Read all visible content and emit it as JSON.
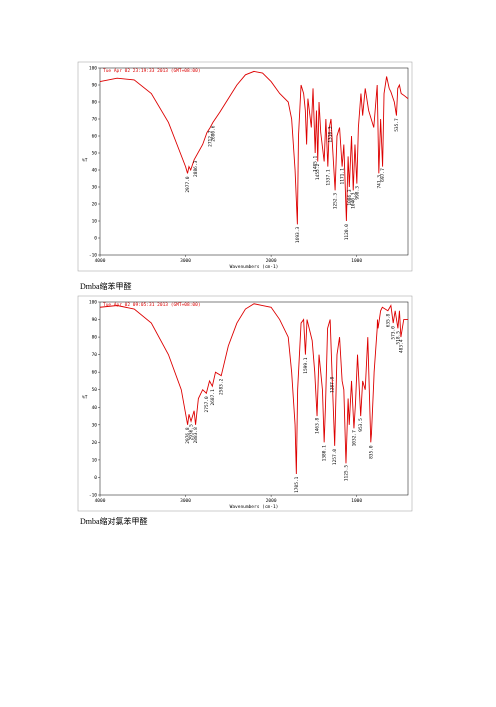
{
  "chart_data": [
    {
      "type": "line",
      "title": "Tue Apr 02 23:19:33 2013 (GMT+08:00)",
      "x_label": "Wavenumbers (cm-1)",
      "y_label": "%T",
      "color": "#dd0000",
      "xlim": [
        4000,
        400
      ],
      "ylim": [
        -10,
        100
      ],
      "xticks": [
        4000,
        3000,
        2000,
        1000
      ],
      "yticks": [
        -10,
        0,
        10,
        20,
        30,
        40,
        50,
        60,
        70,
        80,
        90,
        100
      ],
      "x": [
        4000,
        3800,
        3600,
        3400,
        3200,
        3100,
        3000,
        2977,
        2960,
        2940,
        2900,
        2800,
        2750,
        2712,
        2680,
        2600,
        2500,
        2400,
        2300,
        2200,
        2100,
        2000,
        1900,
        1800,
        1760,
        1720,
        1693,
        1680,
        1650,
        1620,
        1600,
        1585,
        1570,
        1530,
        1510,
        1485,
        1470,
        1455,
        1440,
        1420,
        1380,
        1360,
        1337,
        1320,
        1300,
        1280,
        1252,
        1230,
        1200,
        1170,
        1150,
        1120,
        1100,
        1086,
        1060,
        1040,
        1020,
        998,
        980,
        950,
        930,
        900,
        860,
        800,
        760,
        741,
        720,
        697,
        680,
        650,
        620,
        600,
        560,
        535,
        520,
        500,
        480,
        450,
        400
      ],
      "values": [
        92,
        94,
        93,
        85,
        68,
        55,
        42,
        38,
        42,
        40,
        46,
        55,
        62,
        65,
        68,
        74,
        82,
        90,
        96,
        98,
        97,
        92,
        85,
        80,
        70,
        40,
        8,
        60,
        90,
        85,
        75,
        55,
        82,
        65,
        88,
        50,
        75,
        45,
        80,
        62,
        45,
        70,
        42,
        65,
        70,
        52,
        28,
        60,
        65,
        42,
        55,
        10,
        48,
        30,
        60,
        28,
        55,
        32,
        65,
        85,
        72,
        88,
        75,
        65,
        90,
        38,
        70,
        42,
        85,
        95,
        88,
        86,
        80,
        72,
        88,
        90,
        85,
        84,
        82
      ],
      "peaks": [
        {
          "value": 2977.0,
          "label": "2977.0"
        },
        {
          "value": 2886.3,
          "label": "2886.3"
        },
        {
          "value": 2712.7,
          "label": "2712.7"
        },
        {
          "value": 2680.6,
          "label": "2680.6"
        },
        {
          "value": 1693.3,
          "label": "1693.3"
        },
        {
          "value": 1485.1,
          "label": "1485.1"
        },
        {
          "value": 1455.2,
          "label": "1455.2"
        },
        {
          "value": 1337.1,
          "label": "1337.1"
        },
        {
          "value": 1310.3,
          "label": "1310.3"
        },
        {
          "value": 1252.3,
          "label": "1252.3"
        },
        {
          "value": 1171.1,
          "label": "1171.1"
        },
        {
          "value": 1120.0,
          "label": "1120.0"
        },
        {
          "value": 1086.3,
          "label": "1086.3"
        },
        {
          "value": 1040.3,
          "label": "1040.3"
        },
        {
          "value": 998.3,
          "label": "998.3"
        },
        {
          "value": 741.3,
          "label": "741.3"
        },
        {
          "value": 697.7,
          "label": "697.7"
        },
        {
          "value": 535.7,
          "label": "535.7"
        }
      ]
    },
    {
      "type": "line",
      "title": "Tue Apr 02 09:05:31 2013 (GMT+08:00)",
      "x_label": "Wavenumbers (cm-1)",
      "y_label": "%T",
      "color": "#dd0000",
      "xlim": [
        4000,
        400
      ],
      "ylim": [
        -10,
        100
      ],
      "xticks": [
        4000,
        3000,
        2000,
        1000
      ],
      "yticks": [
        -10,
        0,
        10,
        20,
        30,
        40,
        50,
        60,
        70,
        80,
        90,
        100
      ],
      "x": [
        4000,
        3800,
        3600,
        3400,
        3200,
        3050,
        2976,
        2960,
        2936,
        2900,
        2883,
        2850,
        2800,
        2757,
        2720,
        2687,
        2650,
        2583,
        2500,
        2400,
        2300,
        2200,
        2100,
        2000,
        1900,
        1800,
        1760,
        1720,
        1705,
        1690,
        1650,
        1620,
        1599,
        1580,
        1520,
        1490,
        1463,
        1440,
        1400,
        1380,
        1365,
        1340,
        1310,
        1287,
        1257,
        1230,
        1200,
        1170,
        1150,
        1125,
        1100,
        1087,
        1060,
        1032,
        1014,
        990,
        953,
        930,
        900,
        870,
        835,
        827,
        800,
        796,
        760,
        757,
        750,
        720,
        700,
        635,
        600,
        573,
        550,
        518,
        500,
        483,
        450,
        400
      ],
      "values": [
        97,
        98,
        96,
        88,
        70,
        50,
        30,
        36,
        32,
        38,
        30,
        45,
        50,
        48,
        55,
        52,
        60,
        58,
        75,
        88,
        96,
        99,
        98,
        97,
        90,
        80,
        60,
        30,
        2,
        50,
        88,
        90,
        70,
        90,
        78,
        60,
        35,
        70,
        50,
        20,
        40,
        85,
        90,
        58,
        18,
        70,
        80,
        55,
        50,
        8,
        45,
        30,
        55,
        28,
        42,
        70,
        35,
        55,
        50,
        80,
        20,
        25,
        55,
        60,
        85,
        90,
        85,
        95,
        97,
        95,
        98,
        88,
        95,
        85,
        95,
        80,
        90,
        90
      ],
      "peaks": [
        {
          "value": 2976.8,
          "label": "2976.8"
        },
        {
          "value": 2936.5,
          "label": "2936.5"
        },
        {
          "value": 2883.8,
          "label": "2883.8"
        },
        {
          "value": 2757.0,
          "label": "2757.0"
        },
        {
          "value": 2687.1,
          "label": "2687.1"
        },
        {
          "value": 2583.2,
          "label": "2583.2"
        },
        {
          "value": 1705.1,
          "label": "1705.1"
        },
        {
          "value": 1599.1,
          "label": "1599.1"
        },
        {
          "value": 1463.8,
          "label": "1463.8"
        },
        {
          "value": 1380.1,
          "label": "1380.1"
        },
        {
          "value": 1287.8,
          "label": "1287.8"
        },
        {
          "value": 1257.0,
          "label": "1257.0"
        },
        {
          "value": 1125.5,
          "label": "1125.5"
        },
        {
          "value": 1032.7,
          "label": "1032.7"
        },
        {
          "value": 953.5,
          "label": "953.5"
        },
        {
          "value": 835.0,
          "label": "835.0"
        },
        {
          "value": 635.8,
          "label": "635.8"
        },
        {
          "value": 573.0,
          "label": "573.0"
        },
        {
          "value": 518.5,
          "label": "518.5"
        },
        {
          "value": 483.4,
          "label": "483.4"
        }
      ]
    }
  ],
  "captions": [
    "Dmba缩苯甲醛",
    "Dmba缩对氯苯甲醛"
  ]
}
